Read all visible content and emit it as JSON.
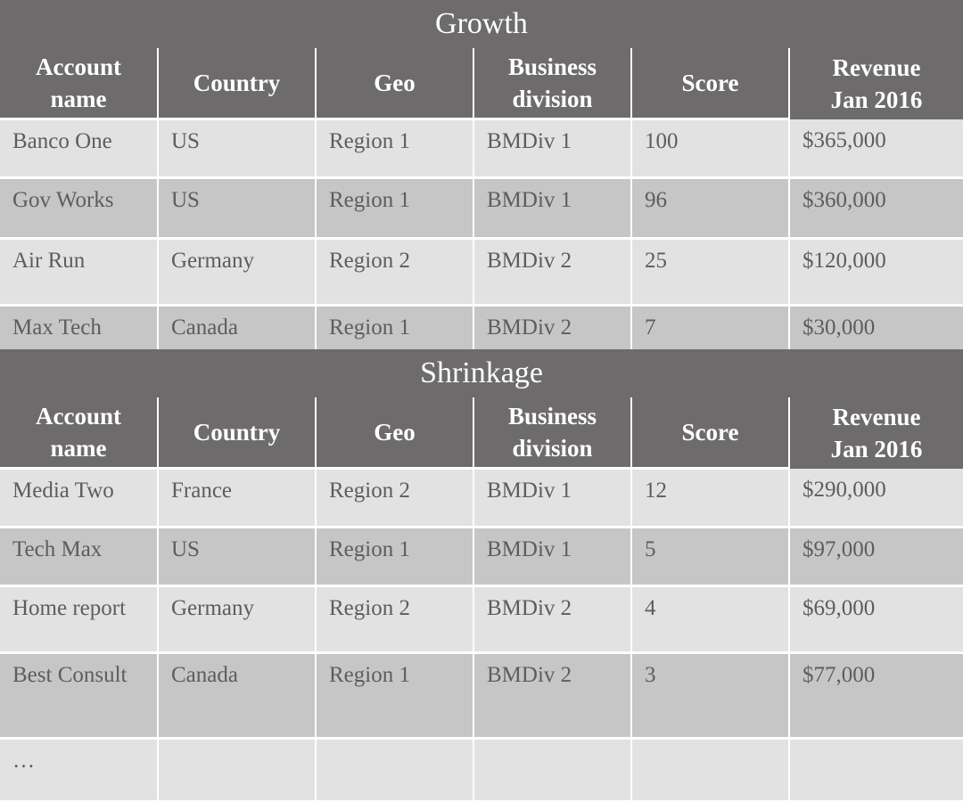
{
  "headers": [
    "Account\nname",
    "Country",
    "Geo",
    "Business\ndivision",
    "Score",
    "Revenue\nJan 2016"
  ],
  "growth": {
    "title": "Growth",
    "rows": [
      [
        "Banco One",
        "US",
        "Region 1",
        "BMDiv 1",
        "100",
        "$365,000"
      ],
      [
        "Gov Works",
        "US",
        "Region 1",
        "BMDiv 1",
        "96",
        "$360,000"
      ],
      [
        "Air Run",
        "Germany",
        "Region 2",
        "BMDiv 2",
        "25",
        "$120,000"
      ],
      [
        "Max Tech",
        "Canada",
        "Region 1",
        "BMDiv 2",
        "7",
        "$30,000"
      ]
    ]
  },
  "shrinkage": {
    "title": "Shrinkage",
    "rows": [
      [
        "Media Two",
        "France",
        "Region 2",
        "BMDiv 1",
        "12",
        "$290,000"
      ],
      [
        "Tech Max",
        "US",
        "Region 1",
        "BMDiv 1",
        "5",
        "$97,000"
      ],
      [
        "Home report",
        "Germany",
        "Region 2",
        "BMDiv 2",
        "4",
        "$69,000"
      ],
      [
        "Best Consult",
        "Canada",
        "Region 1",
        "BMDiv 2",
        "3",
        "$77,000"
      ],
      [
        "…",
        "",
        "",
        "",
        "",
        ""
      ]
    ]
  },
  "colors": {
    "header_bg": "#6d6b6b",
    "row_light": "#e2e2e3",
    "row_dark": "#c6c6c7",
    "text": "#5d5d5d"
  }
}
